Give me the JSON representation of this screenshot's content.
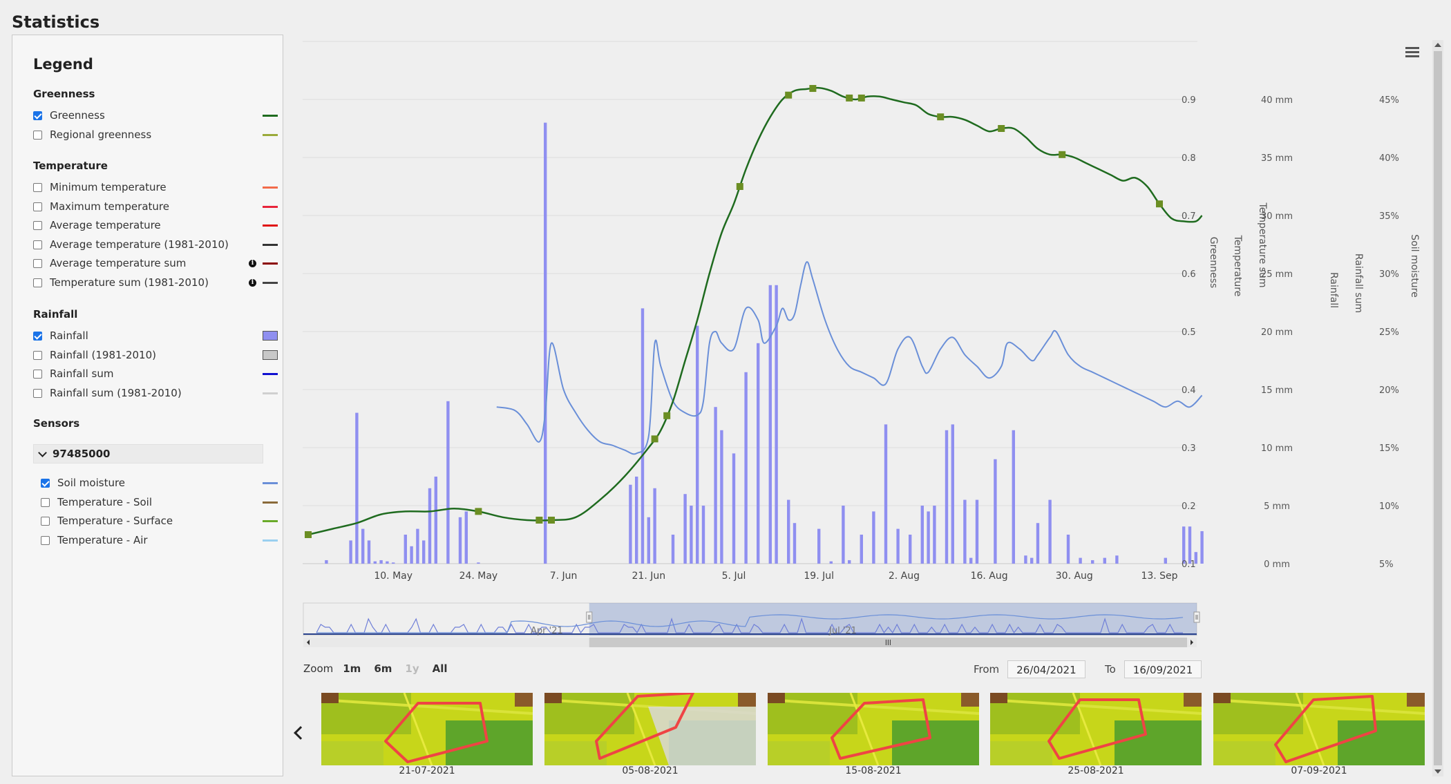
{
  "page": {
    "title": "Statistics"
  },
  "legend": {
    "heading": "Legend",
    "groups": [
      {
        "title": "Greenness",
        "items": [
          {
            "label": "Greenness",
            "checked": true,
            "swatch": "line",
            "color": "#1f6b1f",
            "info": false
          },
          {
            "label": "Regional greenness",
            "checked": false,
            "swatch": "line",
            "color": "#9aaa3a",
            "info": false
          }
        ]
      },
      {
        "title": "Temperature",
        "items": [
          {
            "label": "Minimum temperature",
            "checked": false,
            "swatch": "line",
            "color": "#f26b4a",
            "info": false
          },
          {
            "label": "Maximum temperature",
            "checked": false,
            "swatch": "line",
            "color": "#e8243a",
            "info": false
          },
          {
            "label": "Average temperature",
            "checked": false,
            "swatch": "line",
            "color": "#e01010",
            "info": false
          },
          {
            "label": "Average temperature (1981-2010)",
            "checked": false,
            "swatch": "line",
            "color": "#333333",
            "info": false
          },
          {
            "label": "Average temperature sum",
            "checked": false,
            "swatch": "line",
            "color": "#8b0000",
            "info": true
          },
          {
            "label": "Temperature sum (1981-2010)",
            "checked": false,
            "swatch": "line",
            "color": "#444444",
            "info": true
          }
        ]
      },
      {
        "title": "Rainfall",
        "items": [
          {
            "label": "Rainfall",
            "checked": true,
            "swatch": "box",
            "color": "#8f8ff0",
            "info": false
          },
          {
            "label": "Rainfall (1981-2010)",
            "checked": false,
            "swatch": "box",
            "color": "#c8c8c8",
            "info": false
          },
          {
            "label": "Rainfall sum",
            "checked": false,
            "swatch": "line",
            "color": "#1010d0",
            "info": false
          },
          {
            "label": "Rainfall sum (1981-2010)",
            "checked": false,
            "swatch": "line",
            "color": "#d0d0d0",
            "info": false
          }
        ]
      }
    ],
    "sensors": {
      "title": "Sensors",
      "sensor_id": "97485000",
      "items": [
        {
          "label": "Soil moisture",
          "checked": true,
          "color": "#6a8fd8"
        },
        {
          "label": "Temperature - Soil",
          "checked": false,
          "color": "#8a6a3a"
        },
        {
          "label": "Temperature - Surface",
          "checked": false,
          "color": "#6aaa2a"
        },
        {
          "label": "Temperature - Air",
          "checked": false,
          "color": "#9ad0f0"
        }
      ]
    }
  },
  "chart_data": {
    "type": "bar+line",
    "x_tick_labels": [
      "10. May",
      "24. May",
      "7. Jun",
      "21. Jun",
      "5. Jul",
      "19. Jul",
      "2. Aug",
      "16. Aug",
      "30. Aug",
      "13. Sep"
    ],
    "axes": [
      {
        "title": "Greenness",
        "ticks": [
          "0.1",
          "0.2",
          "0.3",
          "0.4",
          "0.5",
          "0.6",
          "0.7",
          "0.8",
          "0.9"
        ],
        "range": [
          0.1,
          1.0
        ]
      },
      {
        "title": "Temperature",
        "ticks": []
      },
      {
        "title": "Temperature sum",
        "ticks": []
      },
      {
        "title": "Rainfall",
        "ticks": [
          "0 mm",
          "5 mm",
          "10 mm",
          "15 mm",
          "20 mm",
          "25 mm",
          "30 mm",
          "35 mm",
          "40 mm"
        ],
        "range": [
          0,
          45
        ]
      },
      {
        "title": "Rainfall sum",
        "ticks": []
      },
      {
        "title": "Soil moisture",
        "ticks": [
          "5%",
          "10%",
          "15%",
          "20%",
          "25%",
          "30%",
          "35%",
          "40%",
          "45%"
        ],
        "range": [
          5,
          50
        ]
      }
    ],
    "grid": true,
    "series": [
      {
        "name": "Greenness",
        "type": "line",
        "color": "#1f6b1f",
        "marker_color": "#6b8e23",
        "points": [
          [
            0,
            0.15
          ],
          [
            4,
            0.16
          ],
          [
            8,
            0.17
          ],
          [
            12,
            0.185
          ],
          [
            16,
            0.19
          ],
          [
            20,
            0.19
          ],
          [
            24,
            0.195
          ],
          [
            28,
            0.19
          ],
          [
            32,
            0.18
          ],
          [
            36,
            0.175
          ],
          [
            40,
            0.175
          ],
          [
            44,
            0.18
          ],
          [
            48,
            0.21
          ],
          [
            52,
            0.25
          ],
          [
            56,
            0.3
          ],
          [
            58,
            0.33
          ],
          [
            60,
            0.38
          ],
          [
            62,
            0.45
          ],
          [
            64,
            0.52
          ],
          [
            66,
            0.6
          ],
          [
            68,
            0.67
          ],
          [
            70,
            0.72
          ],
          [
            72,
            0.78
          ],
          [
            74,
            0.83
          ],
          [
            76,
            0.87
          ],
          [
            78,
            0.9
          ],
          [
            80,
            0.915
          ],
          [
            82,
            0.918
          ],
          [
            84,
            0.92
          ],
          [
            86,
            0.915
          ],
          [
            88,
            0.905
          ],
          [
            90,
            0.9
          ],
          [
            92,
            0.905
          ],
          [
            94,
            0.905
          ],
          [
            96,
            0.9
          ],
          [
            98,
            0.895
          ],
          [
            100,
            0.89
          ],
          [
            102,
            0.875
          ],
          [
            104,
            0.87
          ],
          [
            106,
            0.87
          ],
          [
            108,
            0.865
          ],
          [
            110,
            0.855
          ],
          [
            112,
            0.845
          ],
          [
            114,
            0.85
          ],
          [
            116,
            0.85
          ],
          [
            118,
            0.835
          ],
          [
            120,
            0.815
          ],
          [
            122,
            0.805
          ],
          [
            124,
            0.805
          ],
          [
            126,
            0.8
          ],
          [
            128,
            0.79
          ],
          [
            130,
            0.78
          ],
          [
            132,
            0.77
          ],
          [
            134,
            0.76
          ],
          [
            136,
            0.765
          ],
          [
            138,
            0.75
          ],
          [
            140,
            0.72
          ],
          [
            142,
            0.695
          ],
          [
            144,
            0.69
          ],
          [
            146,
            0.69
          ],
          [
            147,
            0.7
          ]
        ],
        "markers": [
          0,
          28,
          38,
          40,
          57,
          59,
          71,
          79,
          83,
          89,
          91,
          104,
          114,
          124,
          140
        ]
      },
      {
        "name": "Soil moisture",
        "type": "line",
        "color": "#6a8fd8",
        "axis": "Soil moisture",
        "points": [
          [
            31,
            18.5
          ],
          [
            34,
            18.2
          ],
          [
            36,
            17
          ],
          [
            38,
            15.5
          ],
          [
            39,
            18
          ],
          [
            40,
            24
          ],
          [
            42,
            20
          ],
          [
            44,
            18
          ],
          [
            46,
            16.5
          ],
          [
            48,
            15.5
          ],
          [
            50,
            15.2
          ],
          [
            52,
            14.8
          ],
          [
            54,
            14.5
          ],
          [
            56,
            16
          ],
          [
            57,
            24
          ],
          [
            58,
            22
          ],
          [
            60,
            19
          ],
          [
            62,
            18
          ],
          [
            64,
            17.8
          ],
          [
            65,
            19
          ],
          [
            66,
            24
          ],
          [
            67,
            25
          ],
          [
            68,
            24
          ],
          [
            70,
            23.5
          ],
          [
            72,
            27
          ],
          [
            74,
            26
          ],
          [
            75,
            24
          ],
          [
            77,
            25.5
          ],
          [
            78,
            27
          ],
          [
            79,
            26
          ],
          [
            80,
            26.5
          ],
          [
            81,
            29
          ],
          [
            82,
            31
          ],
          [
            83,
            29.5
          ],
          [
            85,
            26
          ],
          [
            87,
            23.5
          ],
          [
            89,
            22
          ],
          [
            91,
            21.5
          ],
          [
            93,
            21
          ],
          [
            95,
            20.5
          ],
          [
            97,
            23.5
          ],
          [
            99,
            24.5
          ],
          [
            101,
            22
          ],
          [
            102,
            21.5
          ],
          [
            104,
            23.5
          ],
          [
            106,
            24.5
          ],
          [
            108,
            23
          ],
          [
            110,
            22
          ],
          [
            112,
            21
          ],
          [
            114,
            22
          ],
          [
            115,
            24
          ],
          [
            117,
            23.5
          ],
          [
            119,
            22.5
          ],
          [
            120,
            23
          ],
          [
            122,
            24.5
          ],
          [
            123,
            25
          ],
          [
            125,
            23
          ],
          [
            127,
            22
          ],
          [
            129,
            21.5
          ],
          [
            131,
            21
          ],
          [
            133,
            20.5
          ],
          [
            135,
            20
          ],
          [
            137,
            19.5
          ],
          [
            139,
            19
          ],
          [
            141,
            18.5
          ],
          [
            143,
            19
          ],
          [
            145,
            18.5
          ],
          [
            147,
            19.5
          ]
        ]
      },
      {
        "name": "Rainfall",
        "type": "bar",
        "color": "#8f8ff0",
        "axis": "Rainfall",
        "points": [
          [
            3,
            0.3
          ],
          [
            7,
            2
          ],
          [
            8,
            13
          ],
          [
            9,
            3
          ],
          [
            10,
            2
          ],
          [
            11,
            0.2
          ],
          [
            12,
            0.3
          ],
          [
            13,
            0.2
          ],
          [
            14,
            0.1
          ],
          [
            16,
            2.5
          ],
          [
            17,
            1.5
          ],
          [
            18,
            3
          ],
          [
            19,
            2
          ],
          [
            20,
            6.5
          ],
          [
            21,
            7.5
          ],
          [
            23,
            14
          ],
          [
            25,
            4
          ],
          [
            26,
            4.5
          ],
          [
            28,
            0.1
          ],
          [
            39,
            38
          ],
          [
            53,
            6.8
          ],
          [
            54,
            7.5
          ],
          [
            55,
            22
          ],
          [
            56,
            4
          ],
          [
            57,
            6.5
          ],
          [
            60,
            2.5
          ],
          [
            62,
            6
          ],
          [
            63,
            5
          ],
          [
            64,
            20.5
          ],
          [
            65,
            5
          ],
          [
            67,
            13.5
          ],
          [
            68,
            11.5
          ],
          [
            70,
            9.5
          ],
          [
            72,
            16.5
          ],
          [
            74,
            19
          ],
          [
            76,
            24
          ],
          [
            77,
            24
          ],
          [
            79,
            5.5
          ],
          [
            80,
            3.5
          ],
          [
            84,
            3
          ],
          [
            86,
            0.2
          ],
          [
            88,
            5
          ],
          [
            89,
            0.3
          ],
          [
            91,
            2.5
          ],
          [
            93,
            4.5
          ],
          [
            95,
            12
          ],
          [
            97,
            3
          ],
          [
            99,
            2.5
          ],
          [
            101,
            5
          ],
          [
            102,
            4.5
          ],
          [
            103,
            5
          ],
          [
            105,
            11.5
          ],
          [
            106,
            12
          ],
          [
            108,
            5.5
          ],
          [
            109,
            0.5
          ],
          [
            110,
            5.5
          ],
          [
            113,
            9
          ],
          [
            116,
            11.5
          ],
          [
            118,
            0.7
          ],
          [
            119,
            0.5
          ],
          [
            120,
            3.5
          ],
          [
            122,
            5.5
          ],
          [
            125,
            2.5
          ],
          [
            127,
            0.5
          ],
          [
            129,
            0.3
          ],
          [
            131,
            0.5
          ],
          [
            133,
            0.7
          ],
          [
            141,
            0.5
          ],
          [
            144,
            3.2
          ],
          [
            145,
            3.2
          ],
          [
            146,
            1
          ],
          [
            147,
            2.8
          ]
        ]
      }
    ],
    "navigator": {
      "labels": [
        "Apr '21",
        "Jul '21"
      ],
      "selected_from_frac": 0.32,
      "selected_to_frac": 1.0
    }
  },
  "toolbar": {
    "zoom_label": "Zoom",
    "zoom_buttons": [
      {
        "label": "1m",
        "enabled": true
      },
      {
        "label": "6m",
        "enabled": true
      },
      {
        "label": "1y",
        "enabled": false
      },
      {
        "label": "All",
        "enabled": true
      }
    ],
    "from_label": "From",
    "from_value": "26/04/2021",
    "to_label": "To",
    "to_value": "16/09/2021"
  },
  "thumbnails": [
    {
      "date": "21-07-2021"
    },
    {
      "date": "05-08-2021"
    },
    {
      "date": "15-08-2021"
    },
    {
      "date": "25-08-2021"
    },
    {
      "date": "07-09-2021"
    }
  ]
}
